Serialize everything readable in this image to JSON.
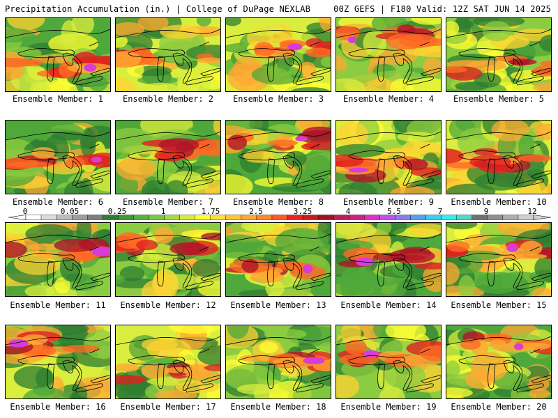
{
  "header": {
    "left": "Precipitation Accumulation (in.) | College of DuPage NEXLAB",
    "right": "00Z GEFS | F180 Valid: 12Z SAT JUN 14 2025"
  },
  "members": [
    "Ensemble Member: 1",
    "Ensemble Member: 2",
    "Ensemble Member: 3",
    "Ensemble Member: 4",
    "Ensemble Member: 5",
    "Ensemble Member: 6",
    "Ensemble Member: 7",
    "Ensemble Member: 8",
    "Ensemble Member: 9",
    "Ensemble Member: 10",
    "Ensemble Member: 11",
    "Ensemble Member: 12",
    "Ensemble Member: 13",
    "Ensemble Member: 14",
    "Ensemble Member: 15",
    "Ensemble Member: 16",
    "Ensemble Member: 17",
    "Ensemble Member: 18",
    "Ensemble Member: 19",
    "Ensemble Member: 20"
  ],
  "colorbar": {
    "labels": [
      "0",
      "0.05",
      "0.25",
      "1",
      "1.75",
      "2.5",
      "3.25",
      "4",
      "5.5",
      "7",
      "9",
      "12"
    ],
    "colors": [
      "#ffffff",
      "#dcdcdc",
      "#bdbdbd",
      "#9e9e9e",
      "#7f7f7f",
      "#2e7d32",
      "#3f9a36",
      "#55b33a",
      "#7ac943",
      "#a8dc45",
      "#d4ee3e",
      "#ffff33",
      "#ffe033",
      "#ffc533",
      "#ffa833",
      "#ff8a2e",
      "#ff5a24",
      "#f02020",
      "#cc1a1a",
      "#a01420",
      "#bf1a5a",
      "#d0208a",
      "#e030c8",
      "#c050f0",
      "#8a7cf0",
      "#5aa0f0",
      "#3cd0f0",
      "#30f0f0",
      "#50d8c8",
      "#707070",
      "#909090",
      "#b0b0b0",
      "#d0d0d0"
    ]
  },
  "field_colors": [
    "#2e7d32",
    "#4fa83a",
    "#8ccc40",
    "#d9ee3e",
    "#ffff33",
    "#ffd233",
    "#ffa833",
    "#ff6a24",
    "#e02020",
    "#b01428",
    "#cc1a8a",
    "#d83cd8"
  ]
}
